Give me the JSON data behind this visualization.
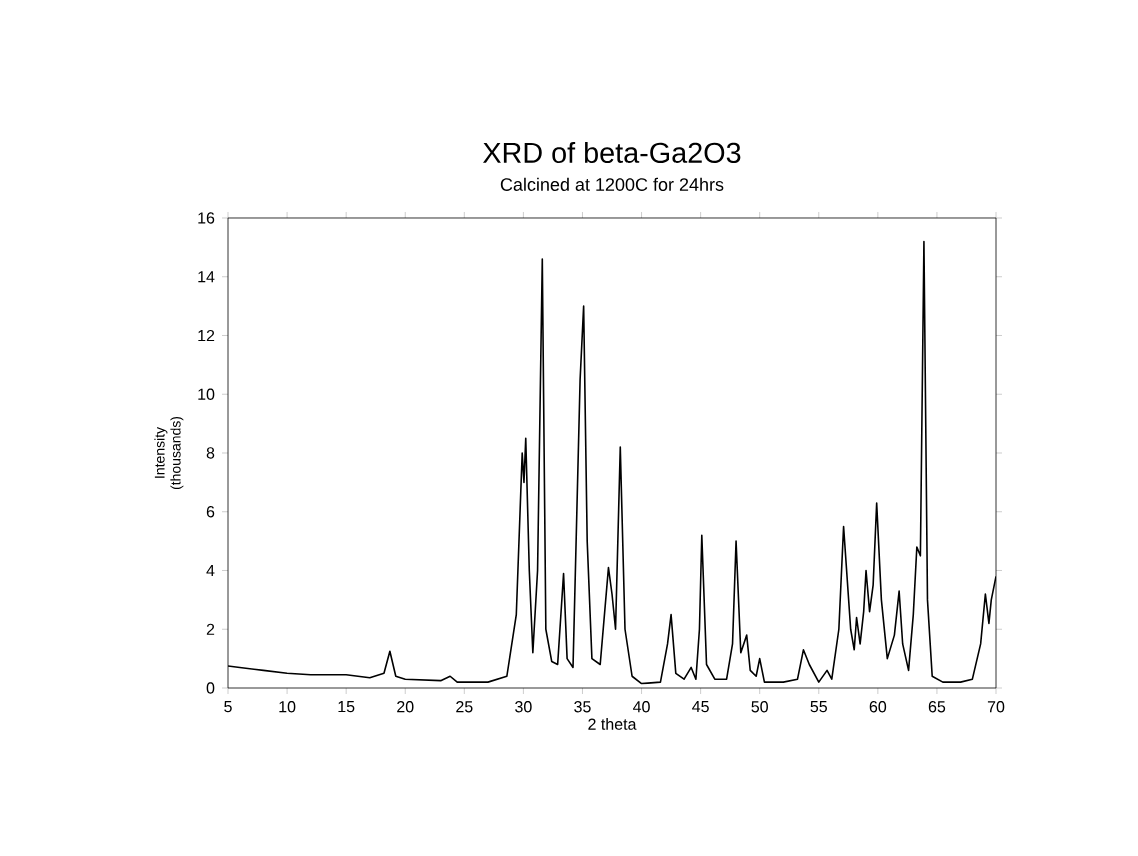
{
  "chart_data": {
    "type": "line",
    "title": "XRD of beta-Ga2O3",
    "subtitle": "Calcined at 1200C for 24hrs",
    "xlabel": "2 theta",
    "ylabel": "Intensity\n(thousands)",
    "color": "#000000",
    "grid": false,
    "marker": "none",
    "line_style": "solid",
    "xlim": [
      5,
      70
    ],
    "ylim": [
      0,
      16
    ],
    "xticks": [
      5,
      10,
      15,
      20,
      25,
      30,
      35,
      40,
      45,
      50,
      55,
      60,
      65,
      70
    ],
    "yticks": [
      0,
      2,
      4,
      6,
      8,
      10,
      12,
      14,
      16
    ],
    "x": [
      5,
      6,
      8,
      10,
      12,
      15,
      17,
      18.2,
      18.7,
      19.2,
      20,
      23,
      23.8,
      24.4,
      27,
      28.6,
      29.4,
      29.9,
      30.05,
      30.2,
      30.5,
      30.8,
      31.2,
      31.6,
      31.9,
      32.4,
      32.9,
      33.4,
      33.7,
      34.2,
      34.8,
      35.1,
      35.4,
      35.8,
      36.5,
      37.2,
      37.5,
      37.8,
      38.2,
      38.6,
      39.2,
      40,
      41.6,
      42.2,
      42.5,
      42.9,
      43.6,
      44.2,
      44.6,
      44.9,
      45.1,
      45.5,
      46.2,
      47.2,
      47.7,
      48.0,
      48.4,
      48.9,
      49.2,
      49.7,
      50.0,
      50.4,
      52,
      53.2,
      53.7,
      54.2,
      55,
      55.7,
      56.1,
      56.7,
      57.1,
      57.7,
      58.0,
      58.2,
      58.5,
      58.8,
      59.0,
      59.3,
      59.6,
      59.9,
      60.3,
      60.8,
      61.4,
      61.8,
      62.1,
      62.6,
      63.0,
      63.3,
      63.6,
      63.9,
      64.2,
      64.6,
      65.5,
      67,
      68,
      68.7,
      69.1,
      69.4,
      69.6,
      70
    ],
    "values": [
      0.75,
      0.7,
      0.6,
      0.5,
      0.45,
      0.45,
      0.35,
      0.5,
      1.25,
      0.4,
      0.3,
      0.25,
      0.4,
      0.2,
      0.2,
      0.4,
      2.5,
      8.0,
      7.0,
      8.5,
      4.0,
      1.2,
      4.0,
      14.6,
      2.0,
      0.9,
      0.8,
      3.9,
      1.0,
      0.7,
      10.5,
      13.0,
      5.0,
      1.0,
      0.8,
      4.1,
      3.2,
      2.0,
      8.2,
      2.0,
      0.4,
      0.15,
      0.2,
      1.5,
      2.5,
      0.5,
      0.3,
      0.7,
      0.3,
      2.0,
      5.2,
      0.8,
      0.3,
      0.3,
      1.5,
      5.0,
      1.2,
      1.8,
      0.6,
      0.4,
      1.0,
      0.2,
      0.2,
      0.3,
      1.3,
      0.8,
      0.2,
      0.6,
      0.3,
      2.0,
      5.5,
      2.0,
      1.3,
      2.4,
      1.5,
      2.6,
      4.0,
      2.6,
      3.5,
      6.3,
      3.0,
      1.0,
      1.8,
      3.3,
      1.5,
      0.6,
      2.5,
      4.8,
      4.5,
      15.2,
      3.0,
      0.4,
      0.2,
      0.2,
      0.3,
      1.5,
      3.2,
      2.2,
      3.0,
      3.8
    ]
  }
}
